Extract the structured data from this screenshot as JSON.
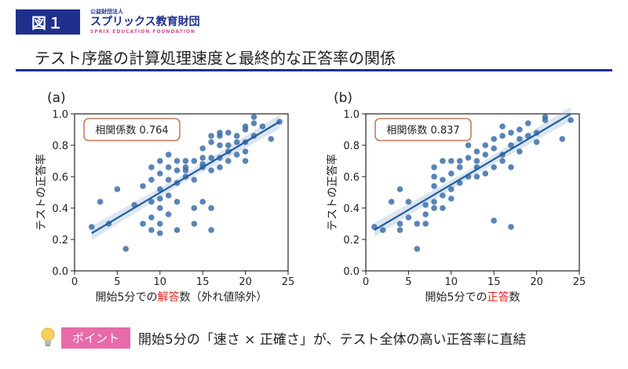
{
  "header": {
    "figure_label": "図１",
    "org_line1": "公益財団法人",
    "org_name": "スプリックス教育財団",
    "org_english": "SPRIX EDUCATION FOUNDATION",
    "title": "テスト序盤の計算処理速度と最終的な正答率の関係"
  },
  "colors": {
    "accent": "#1f2f8c",
    "points": "#3d6fa8",
    "line": "#1f5fa0",
    "highlight": "#e02020",
    "pill": "#e96aa8",
    "box_border": "#b9603a"
  },
  "footer": {
    "pill": "ポイント",
    "text": "開始5分の「速さ × 正確さ」が、テスト全体の高い正答率に直結"
  },
  "chart_data": [
    {
      "type": "scatter",
      "panel": "(a)",
      "ylabel": "テストの正答率",
      "xlabel_parts": [
        "開始5分での",
        "解答",
        "数（外れ値除外）"
      ],
      "xlim": [
        0,
        25
      ],
      "ylim": [
        0,
        1.0
      ],
      "xticks": [
        0,
        5,
        10,
        15,
        20,
        25
      ],
      "yticks": [
        0.0,
        0.2,
        0.4,
        0.6,
        0.8,
        1.0
      ],
      "annotation": "相関係数 0.764",
      "trend": {
        "x": [
          2,
          24
        ],
        "y": [
          0.24,
          0.95
        ]
      },
      "points": [
        [
          2,
          0.28
        ],
        [
          3,
          0.44
        ],
        [
          4,
          0.3
        ],
        [
          5,
          0.52
        ],
        [
          6,
          0.14
        ],
        [
          7,
          0.42
        ],
        [
          8,
          0.54
        ],
        [
          8,
          0.3
        ],
        [
          9,
          0.26
        ],
        [
          9,
          0.34
        ],
        [
          9,
          0.44
        ],
        [
          9,
          0.58
        ],
        [
          9,
          0.66
        ],
        [
          10,
          0.3
        ],
        [
          10,
          0.4
        ],
        [
          10,
          0.52
        ],
        [
          10,
          0.62
        ],
        [
          10,
          0.7
        ],
        [
          10,
          0.46
        ],
        [
          10,
          0.24
        ],
        [
          11,
          0.58
        ],
        [
          11,
          0.66
        ],
        [
          11,
          0.48
        ],
        [
          11,
          0.36
        ],
        [
          12,
          0.26
        ],
        [
          12,
          0.64
        ],
        [
          12,
          0.7
        ],
        [
          12,
          0.56
        ],
        [
          13,
          0.7
        ],
        [
          13,
          0.6
        ],
        [
          13,
          0.66
        ],
        [
          14,
          0.3
        ],
        [
          14,
          0.4
        ],
        [
          14,
          0.58
        ],
        [
          14,
          0.7
        ],
        [
          15,
          0.66
        ],
        [
          15,
          0.72
        ],
        [
          15,
          0.78
        ],
        [
          15,
          0.44
        ],
        [
          15,
          0.68
        ],
        [
          16,
          0.64
        ],
        [
          16,
          0.72
        ],
        [
          16,
          0.82
        ],
        [
          16,
          0.86
        ],
        [
          16,
          0.4
        ],
        [
          16,
          0.26
        ],
        [
          17,
          0.72
        ],
        [
          17,
          0.8
        ],
        [
          17,
          0.86
        ],
        [
          17,
          0.66
        ],
        [
          18,
          0.7
        ],
        [
          18,
          0.8
        ],
        [
          18,
          0.88
        ],
        [
          19,
          0.74
        ],
        [
          19,
          0.82
        ],
        [
          19,
          0.86
        ],
        [
          20,
          0.76
        ],
        [
          20,
          0.82
        ],
        [
          20,
          0.92
        ],
        [
          20,
          0.7
        ],
        [
          21,
          0.94
        ],
        [
          21,
          0.98
        ],
        [
          21,
          0.86
        ],
        [
          22,
          0.92
        ],
        [
          23,
          0.84
        ],
        [
          24,
          0.95
        ],
        [
          11,
          0.74
        ],
        [
          13,
          0.64
        ],
        [
          18,
          0.76
        ],
        [
          17,
          0.88
        ],
        [
          12,
          0.44
        ],
        [
          20,
          0.9
        ]
      ]
    },
    {
      "type": "scatter",
      "panel": "(b)",
      "ylabel": "テストの正答率",
      "xlabel_parts": [
        "開始5分での",
        "正答",
        "数"
      ],
      "xlim": [
        0,
        25
      ],
      "ylim": [
        0,
        1.0
      ],
      "xticks": [
        0,
        5,
        10,
        15,
        20,
        25
      ],
      "yticks": [
        0.0,
        0.2,
        0.4,
        0.6,
        0.8,
        1.0
      ],
      "annotation": "相関係数 0.837",
      "trend": {
        "x": [
          1,
          24
        ],
        "y": [
          0.26,
          1.0
        ]
      },
      "points": [
        [
          1,
          0.28
        ],
        [
          2,
          0.26
        ],
        [
          3,
          0.44
        ],
        [
          4,
          0.3
        ],
        [
          4,
          0.52
        ],
        [
          4,
          0.26
        ],
        [
          5,
          0.34
        ],
        [
          5,
          0.44
        ],
        [
          6,
          0.14
        ],
        [
          6,
          0.3
        ],
        [
          7,
          0.3
        ],
        [
          7,
          0.42
        ],
        [
          7,
          0.36
        ],
        [
          8,
          0.44
        ],
        [
          8,
          0.54
        ],
        [
          8,
          0.4
        ],
        [
          8,
          0.66
        ],
        [
          8,
          0.6
        ],
        [
          9,
          0.48
        ],
        [
          9,
          0.58
        ],
        [
          9,
          0.7
        ],
        [
          10,
          0.46
        ],
        [
          10,
          0.62
        ],
        [
          10,
          0.7
        ],
        [
          10,
          0.52
        ],
        [
          11,
          0.56
        ],
        [
          11,
          0.66
        ],
        [
          11,
          0.7
        ],
        [
          12,
          0.6
        ],
        [
          12,
          0.72
        ],
        [
          13,
          0.7
        ],
        [
          13,
          0.76
        ],
        [
          13,
          0.66
        ],
        [
          14,
          0.62
        ],
        [
          14,
          0.74
        ],
        [
          14,
          0.8
        ],
        [
          15,
          0.32
        ],
        [
          15,
          0.66
        ],
        [
          15,
          0.78
        ],
        [
          15,
          0.84
        ],
        [
          16,
          0.74
        ],
        [
          16,
          0.86
        ],
        [
          16,
          0.7
        ],
        [
          17,
          0.28
        ],
        [
          17,
          0.8
        ],
        [
          17,
          0.88
        ],
        [
          17,
          0.66
        ],
        [
          18,
          0.84
        ],
        [
          18,
          0.9
        ],
        [
          18,
          0.76
        ],
        [
          19,
          0.86
        ],
        [
          19,
          0.94
        ],
        [
          20,
          0.88
        ],
        [
          20,
          0.82
        ],
        [
          21,
          0.96
        ],
        [
          21,
          0.98
        ],
        [
          23,
          0.84
        ],
        [
          24,
          0.96
        ],
        [
          12,
          0.8
        ],
        [
          16,
          0.92
        ],
        [
          9,
          0.4
        ],
        [
          13,
          0.6
        ]
      ]
    }
  ]
}
